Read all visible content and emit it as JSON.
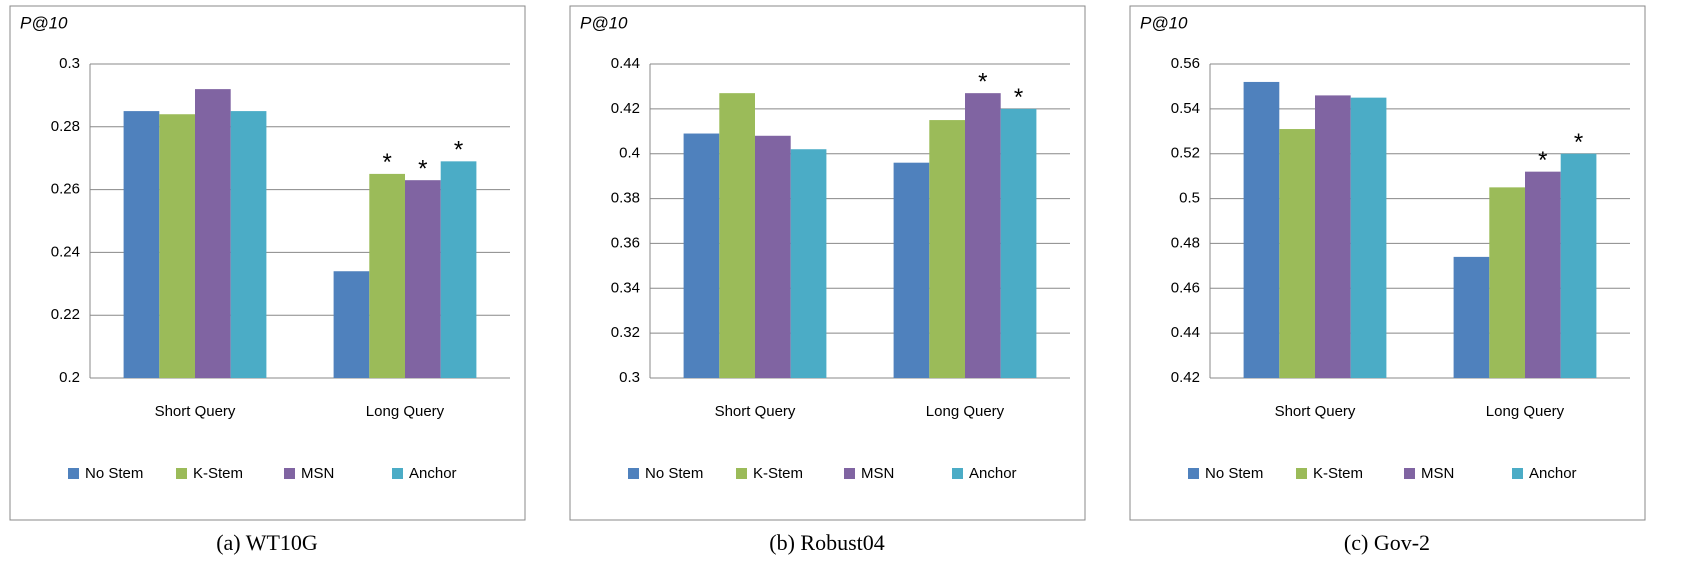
{
  "chart_data": [
    {
      "type": "bar",
      "caption": "(a) WT10G",
      "ylabel": "P@10",
      "categories": [
        "Short Query",
        "Long Query"
      ],
      "series": [
        {
          "name": "No Stem",
          "color": "#4f81bd",
          "values": [
            0.285,
            0.234
          ],
          "annotations": [
            null,
            null
          ]
        },
        {
          "name": "K-Stem",
          "color": "#9bbb59",
          "values": [
            0.284,
            0.265
          ],
          "annotations": [
            null,
            "*"
          ]
        },
        {
          "name": "MSN",
          "color": "#8064a2",
          "values": [
            0.292,
            0.263
          ],
          "annotations": [
            null,
            "*"
          ]
        },
        {
          "name": "Anchor",
          "color": "#4bacc6",
          "values": [
            0.285,
            0.269
          ],
          "annotations": [
            null,
            "*"
          ]
        }
      ],
      "ylim": [
        0.2,
        0.3
      ],
      "yticks": [
        0.2,
        0.22,
        0.24,
        0.26,
        0.28,
        0.3
      ],
      "grid": true,
      "legend": "bottom"
    },
    {
      "type": "bar",
      "caption": "(b) Robust04",
      "ylabel": "P@10",
      "categories": [
        "Short Query",
        "Long Query"
      ],
      "series": [
        {
          "name": "No Stem",
          "color": "#4f81bd",
          "values": [
            0.409,
            0.396
          ],
          "annotations": [
            null,
            null
          ]
        },
        {
          "name": "K-Stem",
          "color": "#9bbb59",
          "values": [
            0.427,
            0.415
          ],
          "annotations": [
            null,
            null
          ]
        },
        {
          "name": "MSN",
          "color": "#8064a2",
          "values": [
            0.408,
            0.427
          ],
          "annotations": [
            null,
            "*"
          ]
        },
        {
          "name": "Anchor",
          "color": "#4bacc6",
          "values": [
            0.402,
            0.42
          ],
          "annotations": [
            null,
            "*"
          ]
        }
      ],
      "ylim": [
        0.3,
        0.44
      ],
      "yticks": [
        0.3,
        0.32,
        0.34,
        0.36,
        0.38,
        0.4,
        0.42,
        0.44
      ],
      "grid": true,
      "legend": "bottom"
    },
    {
      "type": "bar",
      "caption": "(c) Gov-2",
      "ylabel": "P@10",
      "categories": [
        "Short Query",
        "Long Query"
      ],
      "series": [
        {
          "name": "No Stem",
          "color": "#4f81bd",
          "values": [
            0.552,
            0.474
          ],
          "annotations": [
            null,
            null
          ]
        },
        {
          "name": "K-Stem",
          "color": "#9bbb59",
          "values": [
            0.531,
            0.505
          ],
          "annotations": [
            null,
            null
          ]
        },
        {
          "name": "MSN",
          "color": "#8064a2",
          "values": [
            0.546,
            0.512
          ],
          "annotations": [
            null,
            "*"
          ]
        },
        {
          "name": "Anchor",
          "color": "#4bacc6",
          "values": [
            0.545,
            0.52
          ],
          "annotations": [
            null,
            "*"
          ]
        }
      ],
      "ylim": [
        0.42,
        0.56
      ],
      "yticks": [
        0.42,
        0.44,
        0.46,
        0.48,
        0.5,
        0.52,
        0.54,
        0.56
      ],
      "grid": true,
      "legend": "bottom"
    }
  ]
}
